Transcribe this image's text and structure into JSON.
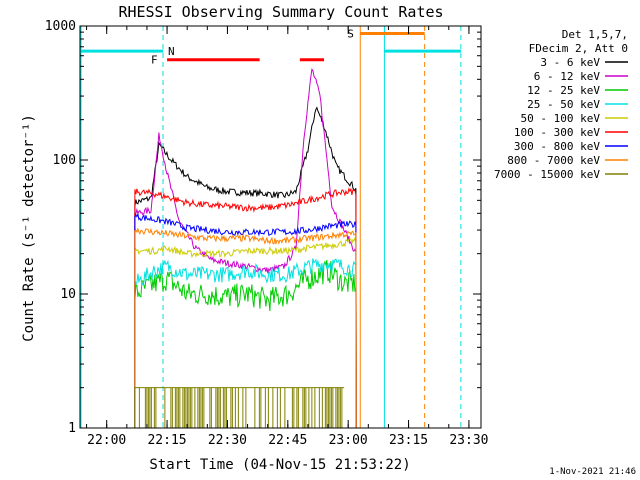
{
  "chart_data": {
    "type": "line",
    "title": "RHESSI Observing Summary Count Rates",
    "xlabel": "Start Time (04-Nov-15 21:53:22)",
    "ylabel": "Count Rate (s⁻¹ detector⁻¹)",
    "y_scale": "log",
    "ylim": [
      1,
      1000
    ],
    "xlim": [
      "21:53:22",
      "23:33:00"
    ],
    "x_ticks": [
      "22:00",
      "22:15",
      "22:30",
      "22:45",
      "23:00",
      "23:15",
      "23:30"
    ],
    "y_ticks": [
      "1",
      "10",
      "100",
      "1000"
    ],
    "timestamp": "1-Nov-2021 21:46",
    "legend_header": [
      "Det 1,5,7,",
      "FDecim 2, Att 0"
    ],
    "legend_position": "right",
    "data_start": "22:07",
    "data_end": "23:02",
    "series": [
      {
        "name": "3 - 6 keV",
        "color": "#000000",
        "points": [
          [
            "22:07",
            48
          ],
          [
            "22:09",
            50
          ],
          [
            "22:11",
            52
          ],
          [
            "22:13",
            130
          ],
          [
            "22:16",
            100
          ],
          [
            "22:20",
            75
          ],
          [
            "22:25",
            62
          ],
          [
            "22:30",
            58
          ],
          [
            "22:35",
            57
          ],
          [
            "22:40",
            56
          ],
          [
            "22:44",
            54
          ],
          [
            "22:47",
            58
          ],
          [
            "22:50",
            120
          ],
          [
            "22:52",
            250
          ],
          [
            "22:54",
            180
          ],
          [
            "22:57",
            90
          ],
          [
            "23:00",
            70
          ],
          [
            "23:02",
            60
          ]
        ]
      },
      {
        "name": "6 - 12 keV",
        "color": "#cc00cc",
        "points": [
          [
            "22:07",
            40
          ],
          [
            "22:11",
            42
          ],
          [
            "22:13",
            155
          ],
          [
            "22:15",
            80
          ],
          [
            "22:18",
            35
          ],
          [
            "22:22",
            22
          ],
          [
            "22:26",
            18
          ],
          [
            "22:30",
            17
          ],
          [
            "22:35",
            16
          ],
          [
            "22:40",
            15
          ],
          [
            "22:44",
            16
          ],
          [
            "22:47",
            22
          ],
          [
            "22:49",
            150
          ],
          [
            "22:51",
            480
          ],
          [
            "22:53",
            300
          ],
          [
            "22:56",
            45
          ],
          [
            "22:59",
            30
          ],
          [
            "23:02",
            20
          ]
        ]
      },
      {
        "name": "12 - 25 keV",
        "color": "#00cc00",
        "points": [
          [
            "22:07",
            10
          ],
          [
            "22:12",
            12
          ],
          [
            "22:15",
            13
          ],
          [
            "22:20",
            10
          ],
          [
            "22:25",
            10
          ],
          [
            "22:30",
            9.5
          ],
          [
            "22:35",
            10
          ],
          [
            "22:40",
            9
          ],
          [
            "22:45",
            10
          ],
          [
            "22:50",
            13
          ],
          [
            "22:55",
            15
          ],
          [
            "22:59",
            12
          ],
          [
            "23:02",
            12
          ]
        ]
      },
      {
        "name": "25 - 50 keV",
        "color": "#00e0e0",
        "points": [
          [
            "22:07",
            12
          ],
          [
            "22:12",
            15
          ],
          [
            "22:15",
            16
          ],
          [
            "22:20",
            14
          ],
          [
            "22:25",
            14
          ],
          [
            "22:30",
            14
          ],
          [
            "22:35",
            15
          ],
          [
            "22:40",
            14
          ],
          [
            "22:45",
            14
          ],
          [
            "22:50",
            16
          ],
          [
            "22:55",
            17
          ],
          [
            "22:59",
            16
          ],
          [
            "23:02",
            15
          ]
        ]
      },
      {
        "name": "50 - 100 keV",
        "color": "#cccc00",
        "points": [
          [
            "22:07",
            21
          ],
          [
            "22:12",
            21
          ],
          [
            "22:15",
            22
          ],
          [
            "22:20",
            20
          ],
          [
            "22:25",
            20
          ],
          [
            "22:30",
            20
          ],
          [
            "22:35",
            21
          ],
          [
            "22:40",
            21
          ],
          [
            "22:45",
            21
          ],
          [
            "22:50",
            22
          ],
          [
            "22:55",
            23
          ],
          [
            "22:59",
            24
          ],
          [
            "23:02",
            25
          ]
        ]
      },
      {
        "name": "100 - 300 keV",
        "color": "#ff0000",
        "points": [
          [
            "22:07",
            58
          ],
          [
            "22:12",
            56
          ],
          [
            "22:16",
            52
          ],
          [
            "22:20",
            48
          ],
          [
            "22:25",
            46
          ],
          [
            "22:30",
            45
          ],
          [
            "22:35",
            44
          ],
          [
            "22:40",
            44
          ],
          [
            "22:45",
            46
          ],
          [
            "22:50",
            50
          ],
          [
            "22:55",
            55
          ],
          [
            "22:59",
            58
          ],
          [
            "23:02",
            58
          ]
        ]
      },
      {
        "name": "300 - 800 keV",
        "color": "#0000ff",
        "points": [
          [
            "22:07",
            38
          ],
          [
            "22:12",
            36
          ],
          [
            "22:16",
            34
          ],
          [
            "22:20",
            31
          ],
          [
            "22:25",
            30
          ],
          [
            "22:30",
            29
          ],
          [
            "22:35",
            29
          ],
          [
            "22:40",
            29
          ],
          [
            "22:45",
            29
          ],
          [
            "22:50",
            30
          ],
          [
            "22:55",
            32
          ],
          [
            "22:59",
            33
          ],
          [
            "23:02",
            33
          ]
        ]
      },
      {
        "name": "800 - 7000 keV",
        "color": "#ff8000",
        "points": [
          [
            "22:07",
            30
          ],
          [
            "22:12",
            29
          ],
          [
            "22:16",
            28
          ],
          [
            "22:20",
            27
          ],
          [
            "22:25",
            26
          ],
          [
            "22:30",
            26
          ],
          [
            "22:35",
            26
          ],
          [
            "22:40",
            25
          ],
          [
            "22:45",
            25
          ],
          [
            "22:50",
            26
          ],
          [
            "22:55",
            27
          ],
          [
            "22:59",
            28
          ],
          [
            "23:02",
            28
          ]
        ]
      },
      {
        "name": "7000 - 15000 keV",
        "color": "#808000",
        "points": [
          [
            "22:07",
            2
          ],
          [
            "22:14",
            2
          ],
          [
            "22:20",
            2
          ],
          [
            "22:30",
            2
          ],
          [
            "22:40",
            2
          ],
          [
            "22:45",
            2
          ],
          [
            "22:50",
            2
          ],
          [
            "22:55",
            2
          ],
          [
            "22:59",
            2
          ]
        ]
      }
    ],
    "annotations": [
      {
        "label": "N",
        "color": "#00e0e0",
        "time": "22:14"
      },
      {
        "label": "F",
        "color": "#ff0000",
        "time": "22:14"
      },
      {
        "label": "S",
        "color": "#ff8000",
        "time": "23:03"
      }
    ]
  }
}
